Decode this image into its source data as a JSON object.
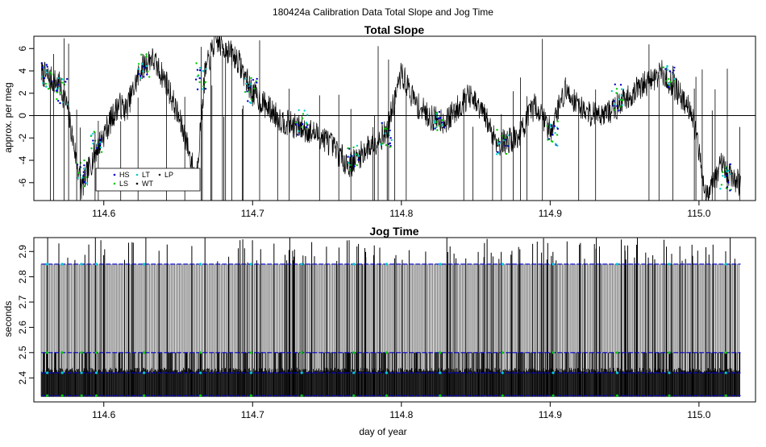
{
  "figure": {
    "title": "180424a   Calibration Data Total Slope and Jog Time"
  },
  "colors": {
    "HS": "#0000cc",
    "LS": "#00cc00",
    "LT": "#00cccc",
    "WT": "#000000",
    "LP": "#222222",
    "trace": "#000000",
    "grey_band": "#777777",
    "zero_line": "#000000"
  },
  "chart_data": [
    {
      "type": "line",
      "title": "Total Slope",
      "xlabel": "",
      "ylabel": "approx. per meg",
      "xlim": [
        114.553,
        115.038
      ],
      "ylim": [
        -7.6,
        7.1
      ],
      "x_ticks": [
        "114.6",
        "114.7",
        "114.8",
        "114.9",
        "115.0"
      ],
      "y_ticks": [
        "6",
        "4",
        "2",
        "0",
        "-2",
        "-4",
        "-6"
      ],
      "reference_line_y": 0,
      "grid": false,
      "legend": {
        "placement": "lower-left",
        "entries": [
          "HS",
          "LT",
          "LP",
          "LS",
          "WT"
        ]
      },
      "series": [
        {
          "name": "",
          "x": [
            114.558,
            114.57,
            114.575,
            114.585,
            114.595,
            114.61,
            114.615,
            114.625,
            114.632,
            114.642,
            114.655,
            114.662,
            114.668,
            114.675,
            114.69,
            114.7,
            114.72,
            114.74,
            114.75,
            114.765,
            114.778,
            114.79,
            114.8,
            114.81,
            114.82,
            114.83,
            114.845,
            114.855,
            114.865,
            114.878,
            114.89,
            114.9,
            114.91,
            114.925,
            114.94,
            114.96,
            114.975,
            114.985,
            114.995,
            115.005,
            115.015,
            115.028
          ],
          "y": [
            3.8,
            2.8,
            1.0,
            -6.5,
            -3.0,
            1.0,
            0.5,
            4.2,
            5.2,
            3.0,
            -2.0,
            -5.8,
            3.8,
            6.8,
            5.0,
            2.0,
            -0.5,
            -1.5,
            -2.2,
            -4.5,
            -2.8,
            -1.5,
            3.8,
            1.0,
            -0.2,
            -0.5,
            1.8,
            0.2,
            -2.5,
            -2.0,
            1.0,
            -1.3,
            2.3,
            0.2,
            0.3,
            2.5,
            3.8,
            2.3,
            0.5,
            -7.2,
            -4.5,
            -6.2
          ]
        }
      ],
      "marked_points": [
        {
          "x": 114.562,
          "y": 3.5
        },
        {
          "x": 114.572,
          "y": 2.2
        },
        {
          "x": 114.585,
          "y": -5.2
        },
        {
          "x": 114.595,
          "y": -2.5
        },
        {
          "x": 114.627,
          "y": 4.5
        },
        {
          "x": 114.665,
          "y": 3.5
        },
        {
          "x": 114.699,
          "y": 2.2
        },
        {
          "x": 114.733,
          "y": -0.7
        },
        {
          "x": 114.768,
          "y": -3.8
        },
        {
          "x": 114.79,
          "y": -1.7
        },
        {
          "x": 114.826,
          "y": -0.5
        },
        {
          "x": 114.868,
          "y": -2.3
        },
        {
          "x": 114.902,
          "y": -1.6
        },
        {
          "x": 114.945,
          "y": 1.6
        },
        {
          "x": 114.98,
          "y": 3.5
        },
        {
          "x": 115.018,
          "y": -5.5
        }
      ]
    },
    {
      "type": "line",
      "title": "Jog Time",
      "xlabel": "day of year",
      "ylabel": "seconds",
      "xlim": [
        114.553,
        115.038
      ],
      "ylim": [
        2.305,
        2.955
      ],
      "x_ticks": [
        "114.6",
        "114.7",
        "114.8",
        "114.9",
        "115.0"
      ],
      "y_ticks": [
        "2.9",
        "2.8",
        "2.7",
        "2.6",
        "2.5",
        "2.4"
      ],
      "grid": false,
      "levels": [
        2.33,
        2.42,
        2.5,
        2.85
      ],
      "x_range_data": [
        114.558,
        115.028
      ]
    }
  ]
}
